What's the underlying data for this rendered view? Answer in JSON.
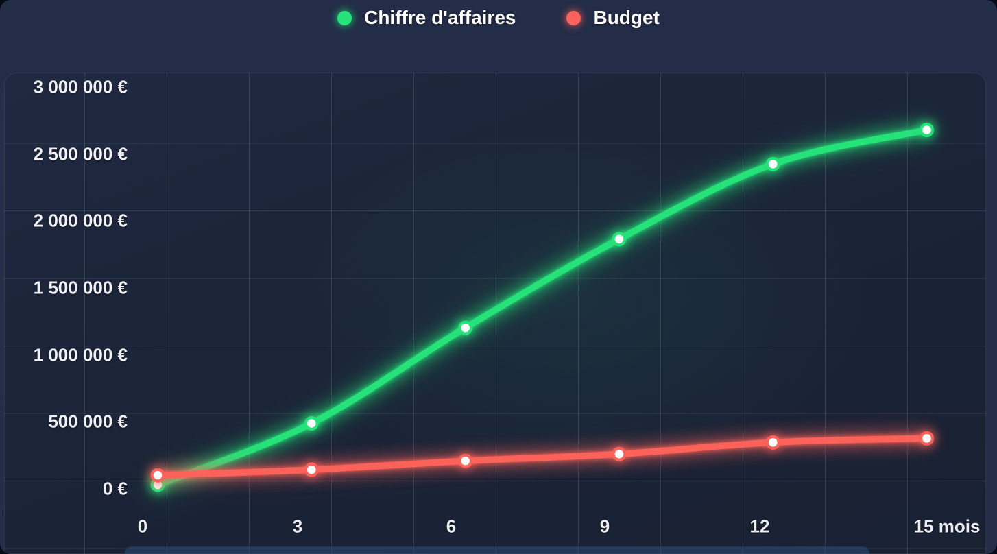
{
  "legend": {
    "items": [
      {
        "label": "Chiffre d'affaires",
        "color": "#25e279"
      },
      {
        "label": "Budget",
        "color": "#fa625a"
      }
    ]
  },
  "chart_data": {
    "type": "line",
    "x": [
      0,
      3,
      6,
      9,
      12,
      15
    ],
    "x_tick_labels": [
      "0",
      "3",
      "6",
      "9",
      "12",
      "15 mois"
    ],
    "y_tick_labels": [
      "0 €",
      "500 000 €",
      "1 000 000 €",
      "1 500 000 €",
      "2 000 000 €",
      "2 500 000 €",
      "3 000 000 €"
    ],
    "ylim": [
      0,
      3000000
    ],
    "xlim": [
      0,
      15
    ],
    "grid": "on",
    "legend_position": "top-center",
    "series": [
      {
        "name": "Chiffre d'affaires",
        "color": "#25e279",
        "values": [
          0,
          450000,
          1150000,
          1800000,
          2350000,
          2600000
        ]
      },
      {
        "name": "Budget",
        "color": "#fa625a",
        "values": [
          70000,
          110000,
          175000,
          225000,
          310000,
          340000
        ]
      }
    ],
    "colors": {
      "background_card": "#232d47",
      "background_plot": "#1b2438",
      "grid_line": "rgba(205,215,235,0.15)",
      "text": "#f0f1f4"
    }
  }
}
